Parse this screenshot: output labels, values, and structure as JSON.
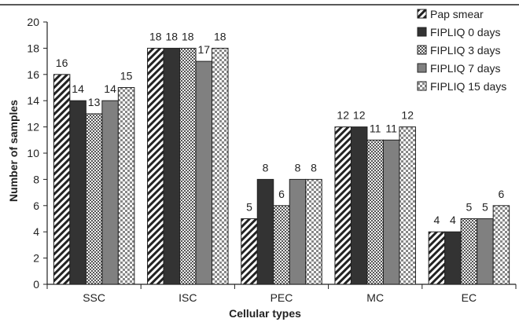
{
  "chart_data": {
    "type": "bar",
    "title": "",
    "xlabel": "Cellular types",
    "ylabel": "Number of samples",
    "categories": [
      "SSC",
      "ISC",
      "PEC",
      "MC",
      "EC"
    ],
    "ylim": [
      0,
      20
    ],
    "yticks": [
      0,
      2,
      4,
      6,
      8,
      10,
      12,
      14,
      16,
      18,
      20
    ],
    "grid": false,
    "legend_position": "top-right",
    "series": [
      {
        "name": "Pap smear",
        "values": [
          16,
          18,
          5,
          12,
          4
        ],
        "pattern": "diagonal-stripes",
        "color": "#ffffff"
      },
      {
        "name": "FIPLIQ 0 days",
        "values": [
          14,
          18,
          8,
          12,
          4
        ],
        "pattern": "solid-dark",
        "color": "#333333"
      },
      {
        "name": "FIPLIQ 3 days",
        "values": [
          13,
          18,
          6,
          11,
          5
        ],
        "pattern": "dotted",
        "color": "#bfbfbf"
      },
      {
        "name": "FIPLIQ 7 days",
        "values": [
          14,
          17,
          8,
          11,
          5
        ],
        "pattern": "solid-gray",
        "color": "#808080"
      },
      {
        "name": "FIPLIQ 15 days",
        "values": [
          15,
          18,
          8,
          12,
          6
        ],
        "pattern": "checker",
        "color": "#d9d9d9"
      }
    ]
  }
}
